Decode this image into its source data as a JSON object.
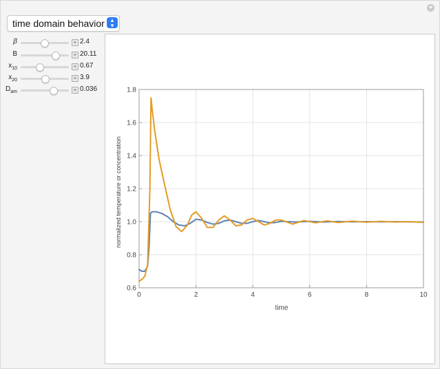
{
  "dropdown": {
    "selected": "time domain behavior"
  },
  "controls": [
    {
      "label": "β",
      "value": "2.4",
      "fraction": 0.48
    },
    {
      "label": "B",
      "value": "20.11",
      "fraction": 0.72
    },
    {
      "label": "x",
      "sub": "10",
      "value": "0.67",
      "fraction": 0.38
    },
    {
      "label": "x",
      "sub": "20",
      "value": "3.9",
      "fraction": 0.5
    },
    {
      "label": "D",
      "sub": "am",
      "value": "0.036",
      "fraction": 0.67
    }
  ],
  "colors": {
    "series1": "#5e81b5",
    "series2": "#e19c24"
  },
  "chart_data": {
    "type": "line",
    "xlabel": "time",
    "ylabel": "normalized temperature or concentration",
    "xlim": [
      0,
      10
    ],
    "ylim": [
      0.6,
      1.8
    ],
    "xticks": [
      "0",
      "2",
      "4",
      "6",
      "8",
      "10"
    ],
    "yticks": [
      "0.6",
      "0.8",
      "1.0",
      "1.2",
      "1.4",
      "1.6",
      "1.8"
    ],
    "grid": true,
    "series": [
      {
        "x": [
          0,
          0.1,
          0.2,
          0.3,
          0.35,
          0.4,
          0.45,
          0.6,
          0.8,
          1.0,
          1.2,
          1.4,
          1.6,
          1.8,
          2.0,
          2.2,
          2.4,
          2.6,
          2.8,
          3.0,
          3.2,
          3.4,
          3.6,
          3.8,
          4.0,
          4.2,
          4.4,
          4.6,
          4.8,
          5.0,
          5.5,
          6.0,
          6.5,
          7.0,
          7.5,
          8.0,
          8.5,
          9.0,
          9.5,
          10.0
        ],
        "y": [
          0.71,
          0.7,
          0.7,
          0.73,
          0.85,
          1.05,
          1.06,
          1.06,
          1.05,
          1.03,
          1.0,
          0.98,
          0.975,
          0.99,
          1.015,
          1.01,
          0.995,
          0.985,
          0.99,
          1.005,
          1.01,
          1.0,
          0.99,
          0.99,
          1.0,
          1.007,
          1.0,
          0.993,
          0.995,
          1.002,
          0.998,
          1.002,
          0.998,
          1.001,
          0.999,
          1.0,
          0.999,
          1.0,
          0.999,
          0.998
        ]
      },
      {
        "x": [
          0,
          0.1,
          0.2,
          0.3,
          0.38,
          0.42,
          0.46,
          0.55,
          0.7,
          0.9,
          1.1,
          1.3,
          1.5,
          1.7,
          1.85,
          2.0,
          2.2,
          2.4,
          2.6,
          2.8,
          3.0,
          3.2,
          3.4,
          3.6,
          3.8,
          4.0,
          4.2,
          4.4,
          4.6,
          4.8,
          5.0,
          5.4,
          5.8,
          6.2,
          6.6,
          7.0,
          7.5,
          8.0,
          8.5,
          9.0,
          9.5,
          10.0
        ],
        "y": [
          0.64,
          0.65,
          0.67,
          0.74,
          1.2,
          1.75,
          1.68,
          1.55,
          1.38,
          1.22,
          1.07,
          0.97,
          0.94,
          0.98,
          1.04,
          1.06,
          1.02,
          0.965,
          0.965,
          1.01,
          1.035,
          1.01,
          0.975,
          0.98,
          1.01,
          1.02,
          1.0,
          0.98,
          0.99,
          1.01,
          1.01,
          0.985,
          1.007,
          0.993,
          1.005,
          0.995,
          1.003,
          0.997,
          1.002,
          0.998,
          1.0,
          0.996
        ]
      }
    ]
  }
}
